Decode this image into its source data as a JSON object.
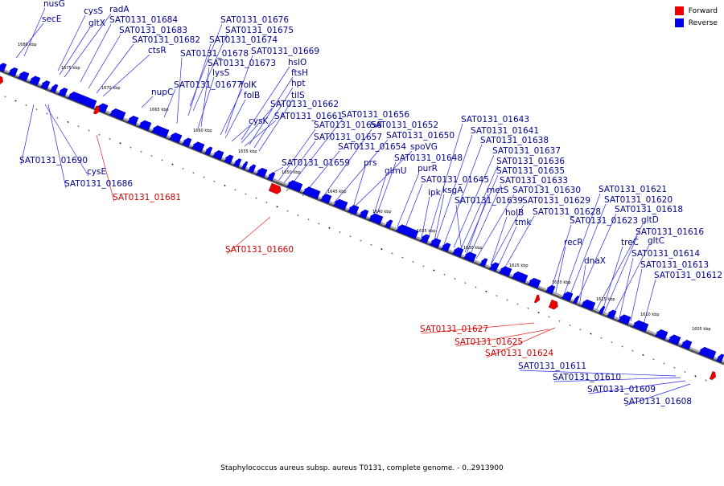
{
  "legend": [
    {
      "label": "Forward",
      "color": "#ee0000"
    },
    {
      "label": "Reverse",
      "color": "#0000ee"
    }
  ],
  "footer": "Staphylococcus aureus subsp. aureus T0131, complete genome. - 0..2913900",
  "ticks": [
    "1680 kbp",
    "1675 kbp",
    "1670 kbp",
    "1665 kbp",
    "1660 kbp",
    "1655 kbp",
    "1650 kbp",
    "1645 kbp",
    "1640 kbp",
    "1635 kbp",
    "1630 kbp",
    "1625 kbp",
    "1620 kbp",
    "1615 kbp",
    "1610 kbp",
    "1605 kbp"
  ],
  "reverse_labels": [
    "nusG",
    "secE",
    "cysS",
    "gltX",
    "radA",
    "SAT0131_01684",
    "SAT0131_01683",
    "SAT0131_01682",
    "ctsR",
    "SAT0131_01676",
    "SAT0131_01675",
    "SAT0131_01674",
    "SAT0131_01678",
    "SAT0131_01669",
    "SAT0131_01673",
    "nupC",
    "hslO",
    "ftsH",
    "lysS",
    "SAT0131_01677",
    "folK",
    "hpt",
    "folB",
    "tilS",
    "SAT0131_01662",
    "cysK",
    "SAT0131_01661",
    "SAT0131_01656",
    "SAT0131_01658",
    "SAT0131_01652",
    "SAT0131_01657",
    "SAT0131_01650",
    "SAT0131_01654",
    "spoVG",
    "prs",
    "SAT0131_01648",
    "SAT0131_01659",
    "glmU",
    "purR",
    "SAT0131_01690",
    "cysE",
    "SAT0131_01686",
    "SAT0131_01643",
    "SAT0131_01641",
    "SAT0131_01638",
    "SAT0131_01637",
    "SAT0131_01636",
    "SAT0131_01635",
    "SAT0131_01633",
    "SAT0131_01645",
    "SAT0131_01630",
    "ipk",
    "ksgA",
    "metS",
    "SAT0131_01639",
    "SAT0131_01629",
    "holB",
    "SAT0131_01628",
    "tmk",
    "SAT0131_01621",
    "SAT0131_01620",
    "SAT0131_01618",
    "SAT0131_01623",
    "gltD",
    "SAT0131_01616",
    "gltC",
    "recR",
    "dnaX",
    "treC",
    "SAT0131_01614",
    "SAT0131_01613",
    "SAT0131_01612",
    "SAT0131_01611",
    "SAT0131_01610",
    "SAT0131_01609",
    "SAT0131_01608"
  ],
  "forward_labels": [
    "SAT0131_01681",
    "SAT0131_01660",
    "SAT0131_01627",
    "SAT0131_01625",
    "SAT0131_01624"
  ]
}
